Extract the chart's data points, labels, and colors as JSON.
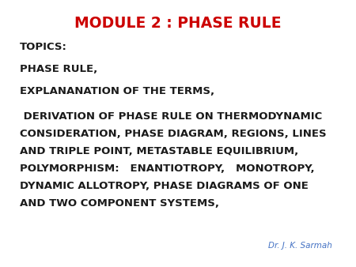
{
  "title": "MODULE 2 : PHASE RULE",
  "title_color": "#cc0000",
  "title_fontsize": 13.5,
  "title_fontweight": "bold",
  "background_color": "#ffffff",
  "lines": [
    {
      "text": "TOPICS:",
      "fontsize": 9.5,
      "color": "#1a1a1a",
      "indent": 0.055
    },
    {
      "text": "PHASE RULE,",
      "fontsize": 9.5,
      "color": "#1a1a1a",
      "indent": 0.055
    },
    {
      "text": "EXPLANANATION OF THE TERMS,",
      "fontsize": 9.5,
      "color": "#1a1a1a",
      "indent": 0.055
    },
    {
      "text": " DERIVATION OF PHASE RULE ON THERMODYNAMIC CONSIDERATION, PHASE DIAGRAM, REGIONS, LINES AND TRIPLE POINT, METASTABLE EQUILIBRIUM, POLYMORPHISM:   ENANTIOTROPY,   MONOTROPY, DYNAMIC ALLOTROPY, PHASE DIAGRAMS OF ONE AND TWO COMPONENT SYSTEMS,",
      "fontsize": 9.5,
      "color": "#1a1a1a",
      "indent": 0.055
    }
  ],
  "attribution": "Dr. J. K. Sarmah",
  "attribution_color": "#4472c4",
  "attribution_fontsize": 7.5
}
